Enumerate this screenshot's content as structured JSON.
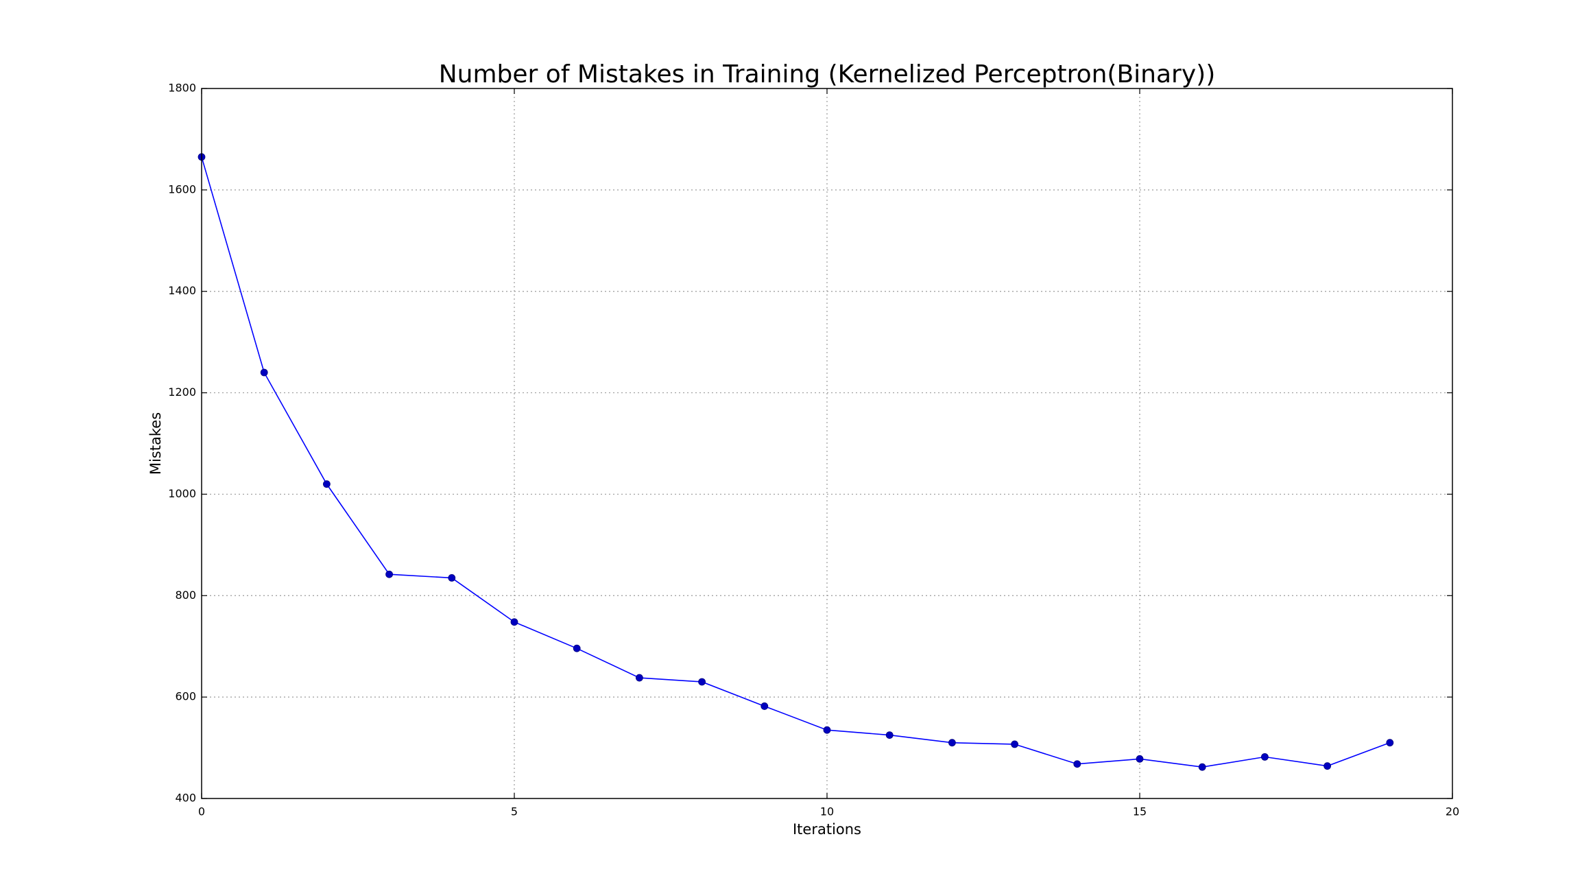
{
  "chart_data": {
    "type": "line",
    "title": "Number of Mistakes in Training (Kernelized Perceptron(Binary))",
    "xlabel": "Iterations",
    "ylabel": "Mistakes",
    "xlim": [
      0,
      20
    ],
    "ylim": [
      400,
      1800
    ],
    "xticks": [
      0,
      5,
      10,
      15,
      20
    ],
    "yticks": [
      400,
      600,
      800,
      1000,
      1200,
      1400,
      1600,
      1800
    ],
    "grid": true,
    "line_color": "#0000ff",
    "marker_color": "#0000bf",
    "x": [
      0,
      1,
      2,
      3,
      4,
      5,
      6,
      7,
      8,
      9,
      10,
      11,
      12,
      13,
      14,
      15,
      16,
      17,
      18,
      19
    ],
    "values": [
      1665,
      1240,
      1020,
      842,
      835,
      748,
      696,
      638,
      630,
      582,
      535,
      525,
      510,
      507,
      468,
      478,
      462,
      482,
      464,
      510
    ]
  }
}
